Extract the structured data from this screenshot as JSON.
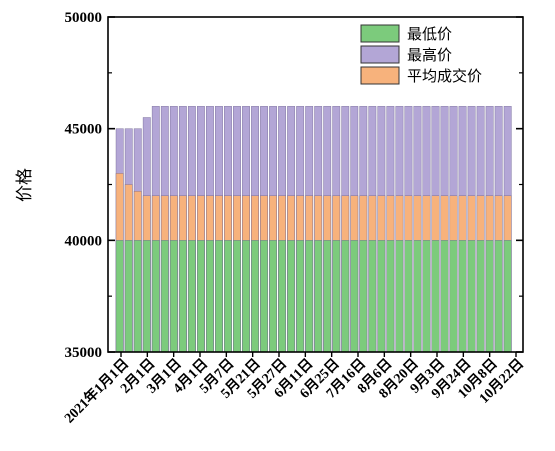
{
  "chart_data": {
    "type": "bar",
    "ylabel": "价格",
    "xlabel": "",
    "title": "",
    "ylim": [
      35000,
      50000
    ],
    "yticks": [
      35000,
      40000,
      45000,
      50000
    ],
    "y_tick_labels": [
      "35000",
      "40000",
      "45000",
      "50000"
    ],
    "x_tick_labels": [
      "2021年1月1日",
      "2月1日",
      "3月1日",
      "4月1日",
      "5月7日",
      "5月21日",
      "5月27日",
      "6月11日",
      "6月25日",
      "7月16日",
      "8月6日",
      "8月20日",
      "9月3日",
      "9月24日",
      "10月8日",
      "10月22日"
    ],
    "grid": false,
    "legend_position": "top-right",
    "series": [
      {
        "name": "最低价",
        "color": "#7ccb7c",
        "values": [
          40000,
          40000,
          40000,
          40000,
          40000,
          40000,
          40000,
          40000,
          40000,
          40000,
          40000,
          40000,
          40000,
          40000,
          40000,
          40000,
          40000,
          40000,
          40000,
          40000,
          40000,
          40000,
          40000,
          40000,
          40000,
          40000,
          40000,
          40000,
          40000,
          40000,
          40000,
          40000,
          40000,
          40000,
          40000,
          40000,
          40000,
          40000,
          40000,
          40000,
          40000,
          40000,
          40000,
          40000
        ]
      },
      {
        "name": "最高价",
        "color": "#b3a6d6",
        "values": [
          45000,
          45000,
          45000,
          45500,
          46000,
          46000,
          46000,
          46000,
          46000,
          46000,
          46000,
          46000,
          46000,
          46000,
          46000,
          46000,
          46000,
          46000,
          46000,
          46000,
          46000,
          46000,
          46000,
          46000,
          46000,
          46000,
          46000,
          46000,
          46000,
          46000,
          46000,
          46000,
          46000,
          46000,
          46000,
          46000,
          46000,
          46000,
          46000,
          46000,
          46000,
          46000,
          46000,
          46000
        ]
      },
      {
        "name": "平均成交价",
        "color": "#f7b27c",
        "values": [
          43000,
          42500,
          42200,
          42000,
          42000,
          42000,
          42000,
          42000,
          42000,
          42000,
          42000,
          42000,
          42000,
          42000,
          42000,
          42000,
          42000,
          42000,
          42000,
          42000,
          42000,
          42000,
          42000,
          42000,
          42000,
          42000,
          42000,
          42000,
          42000,
          42000,
          42000,
          42000,
          42000,
          42000,
          42000,
          42000,
          42000,
          42000,
          42000,
          42000,
          42000,
          42000,
          42000,
          42000
        ]
      }
    ]
  }
}
